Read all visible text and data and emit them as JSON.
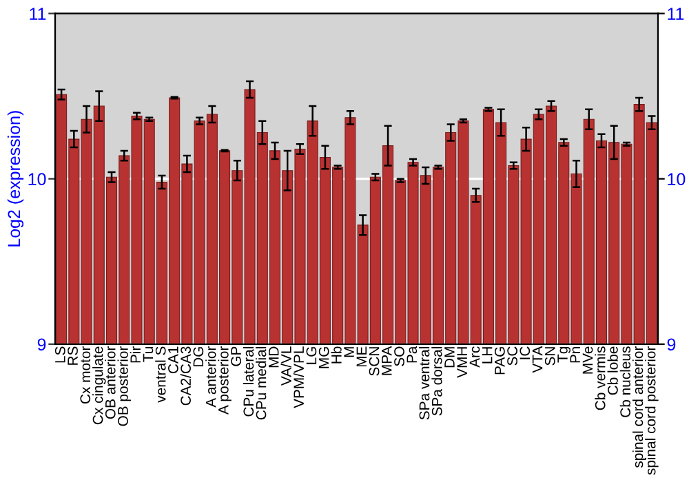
{
  "chart_data": {
    "type": "bar",
    "ylabel": "Log2 (expression)",
    "categories": [
      "LS",
      "RS",
      "Cx motor",
      "Cx cingulate",
      "OB anterior",
      "OB posterior",
      "Pir",
      "Tu",
      "ventral S",
      "CA1",
      "CA2/CA3",
      "DG",
      "A anterior",
      "A posterior",
      "GP",
      "CPu lateral",
      "CPu medial",
      "MD",
      "VA/VL",
      "VPM/VPL",
      "LG",
      "MG",
      "Hb",
      "M",
      "ME",
      "SCN",
      "MPA",
      "SO",
      "Pa",
      "SPa ventral",
      "SPa dorsal",
      "DM",
      "VMH",
      "Arc",
      "LH",
      "PAG",
      "SC",
      "IC",
      "VTA",
      "SN",
      "Tg",
      "Pn",
      "MVe",
      "Cb vermis",
      "Cb lobe",
      "Cb nucleus",
      "spinal cord anterior",
      "spinal cord posterior"
    ],
    "values": [
      10.51,
      10.24,
      10.36,
      10.44,
      10.01,
      10.14,
      10.38,
      10.36,
      9.98,
      10.49,
      10.09,
      10.35,
      10.39,
      10.17,
      10.05,
      10.54,
      10.28,
      10.17,
      10.05,
      10.18,
      10.35,
      10.13,
      10.07,
      10.37,
      9.72,
      10.01,
      10.2,
      9.99,
      10.1,
      10.02,
      10.07,
      10.28,
      10.35,
      9.9,
      10.42,
      10.34,
      10.08,
      10.24,
      10.39,
      10.44,
      10.22,
      10.03,
      10.36,
      10.23,
      10.22,
      10.21,
      10.45,
      10.34
    ],
    "errors": [
      0.03,
      0.05,
      0.08,
      0.09,
      0.03,
      0.03,
      0.02,
      0.01,
      0.04,
      0.005,
      0.05,
      0.02,
      0.05,
      0.005,
      0.06,
      0.05,
      0.07,
      0.05,
      0.12,
      0.03,
      0.09,
      0.07,
      0.01,
      0.04,
      0.06,
      0.02,
      0.12,
      0.01,
      0.02,
      0.05,
      0.01,
      0.05,
      0.01,
      0.04,
      0.01,
      0.08,
      0.02,
      0.07,
      0.03,
      0.03,
      0.02,
      0.08,
      0.06,
      0.04,
      0.1,
      0.01,
      0.04,
      0.04
    ],
    "color": "#b83232",
    "ylim": [
      9,
      11
    ],
    "yticks": [
      9,
      10,
      11
    ],
    "y2lim": [
      9,
      11
    ],
    "y2ticks": [
      9,
      10,
      11
    ],
    "grid": "y",
    "legend": false
  }
}
